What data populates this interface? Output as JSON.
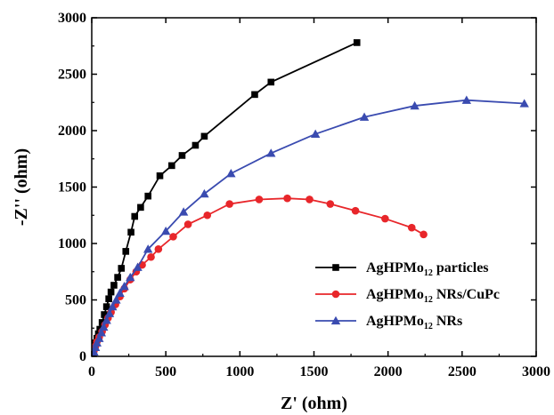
{
  "chart_data": {
    "type": "line",
    "xlabel": "Z' (ohm)",
    "ylabel": "-Z'' (ohm)",
    "xlim": [
      0,
      3000
    ],
    "ylim": [
      0,
      3000
    ],
    "xticks": [
      0,
      500,
      1000,
      1500,
      2000,
      2500,
      3000
    ],
    "yticks": [
      0,
      500,
      1000,
      1500,
      2000,
      2500,
      3000
    ],
    "grid": false,
    "legend_position": "bottom-right",
    "colors": {
      "particles": "#000000",
      "nrs_cupc": "#e8262a",
      "nrs": "#3a4bb0"
    },
    "series": [
      {
        "key": "particles",
        "name_main": "AgHPMo",
        "name_sub": "12",
        "name_rest": " particles",
        "marker": "square",
        "color": "#000000",
        "x": [
          5,
          15,
          25,
          35,
          45,
          55,
          70,
          85,
          100,
          115,
          130,
          150,
          175,
          200,
          230,
          265,
          290,
          330,
          380,
          460,
          540,
          610,
          700,
          760,
          1100,
          1210,
          1790
        ],
        "y": [
          40,
          80,
          120,
          160,
          200,
          240,
          300,
          370,
          440,
          510,
          570,
          630,
          700,
          780,
          930,
          1100,
          1240,
          1320,
          1420,
          1600,
          1690,
          1780,
          1870,
          1950,
          2320,
          2430,
          2780
        ]
      },
      {
        "key": "nrs_cupc",
        "name_main": "AgHPMo",
        "name_sub": "12",
        "name_rest": " NRs/CuPc",
        "marker": "circle",
        "color": "#e8262a",
        "x": [
          5,
          15,
          25,
          35,
          50,
          70,
          90,
          110,
          130,
          160,
          190,
          220,
          260,
          300,
          340,
          400,
          450,
          550,
          650,
          780,
          930,
          1130,
          1320,
          1470,
          1610,
          1780,
          1980,
          2160,
          2240
        ],
        "y": [
          20,
          50,
          90,
          130,
          170,
          220,
          280,
          340,
          390,
          460,
          530,
          600,
          680,
          750,
          810,
          880,
          950,
          1060,
          1170,
          1250,
          1350,
          1390,
          1400,
          1390,
          1350,
          1290,
          1220,
          1140,
          1080
        ]
      },
      {
        "key": "nrs",
        "name_main": "AgHPMo",
        "name_sub": "12",
        "name_rest": " NRs",
        "marker": "triangle",
        "color": "#3a4bb0",
        "x": [
          5,
          15,
          25,
          35,
          50,
          65,
          80,
          100,
          120,
          140,
          165,
          190,
          220,
          260,
          310,
          380,
          500,
          620,
          760,
          940,
          1210,
          1510,
          1840,
          2180,
          2530,
          2920
        ],
        "y": [
          10,
          40,
          80,
          120,
          160,
          210,
          260,
          320,
          380,
          440,
          500,
          560,
          620,
          700,
          790,
          950,
          1110,
          1280,
          1440,
          1620,
          1800,
          1970,
          2120,
          2220,
          2270,
          2240
        ]
      }
    ]
  }
}
